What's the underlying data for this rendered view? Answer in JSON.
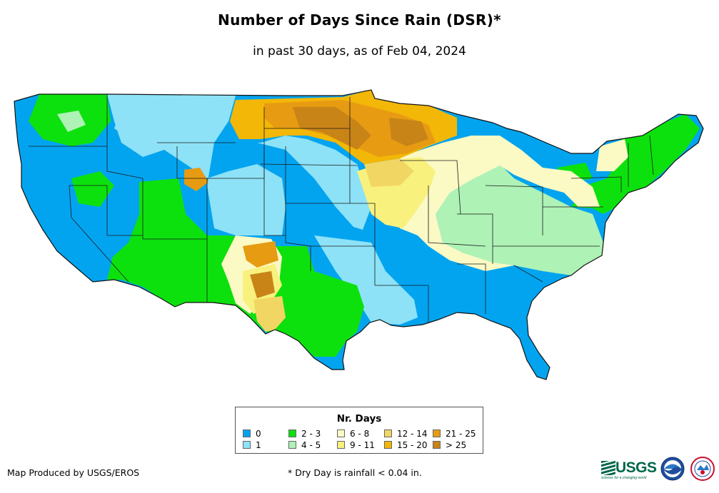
{
  "title": "Number of Days Since Rain (DSR)*",
  "subtitle": "in past 30 days, as of Feb 04, 2024",
  "legend": {
    "title": "Nr. Days",
    "items": [
      {
        "label": "0",
        "color": "#03a4ef"
      },
      {
        "label": "1",
        "color": "#8de2f7"
      },
      {
        "label": "2 - 3",
        "color": "#0de10d"
      },
      {
        "label": "4 - 5",
        "color": "#aef2b6"
      },
      {
        "label": "6 - 8",
        "color": "#fbf9c4"
      },
      {
        "label": "9 - 11",
        "color": "#f8f17e"
      },
      {
        "label": "12 - 14",
        "color": "#f2d664"
      },
      {
        "label": "15 - 20",
        "color": "#f3b707"
      },
      {
        "label": "21 - 25",
        "color": "#e79b12"
      },
      {
        "label": "> 25",
        "color": "#c98417"
      }
    ]
  },
  "footer": {
    "producer": "Map Produced by USGS/EROS",
    "note": "* Dry Day is rainfall < 0.04 in."
  },
  "logos": {
    "usgs": "USGS",
    "usgs_tagline": "science for a changing world",
    "noaa": "noaa-logo",
    "nws": "nws-logo"
  },
  "map": {
    "region": "Contiguous United States",
    "icons": [
      "usgs-logo",
      "noaa-logo",
      "nws-logo"
    ]
  }
}
